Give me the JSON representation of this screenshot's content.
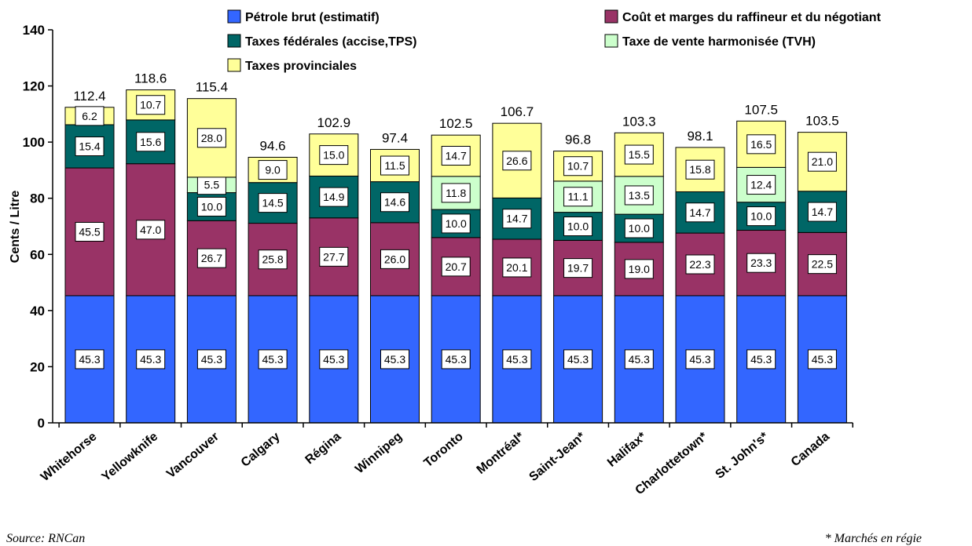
{
  "chart_data": {
    "type": "bar",
    "stacked": true,
    "title": "",
    "xlabel": "",
    "ylabel": "Cents / Litre",
    "ylim": [
      0,
      140
    ],
    "yticks": [
      0,
      20,
      40,
      60,
      80,
      100,
      120,
      140
    ],
    "grid": false,
    "legend_position": "top",
    "categories": [
      "Whitehorse",
      "Yellowknife",
      "Vancouver",
      "Calgary",
      "Régina",
      "Winnipeg",
      "Toronto",
      "Montréal*",
      "Saint-Jean*",
      "Halifax*",
      "Charlottetown*",
      "St. John's*",
      "Canada"
    ],
    "series": [
      {
        "name": "Pétrole brut (estimatif)",
        "color": "#3366ff",
        "values": [
          45.3,
          45.3,
          45.3,
          45.3,
          45.3,
          45.3,
          45.3,
          45.3,
          45.3,
          45.3,
          45.3,
          45.3,
          45.3
        ]
      },
      {
        "name": "Coût et marges du raffineur et du négotiant",
        "color": "#993366",
        "values": [
          45.5,
          47.0,
          26.7,
          25.8,
          27.7,
          26.0,
          20.7,
          20.1,
          19.7,
          19.0,
          22.3,
          23.3,
          22.5
        ]
      },
      {
        "name": "Taxes fédérales (accise,TPS)",
        "color": "#006666",
        "values": [
          15.4,
          15.6,
          10.0,
          14.5,
          14.9,
          14.6,
          10.0,
          14.7,
          10.0,
          10.0,
          14.7,
          10.0,
          14.7
        ]
      },
      {
        "name": "Taxe de vente harmonisée (TVH)",
        "color": "#ccffcc",
        "values": [
          null,
          null,
          5.5,
          null,
          null,
          null,
          11.8,
          null,
          11.1,
          13.5,
          null,
          12.4,
          null
        ]
      },
      {
        "name": "Taxes provinciales",
        "color": "#ffff99",
        "values": [
          6.2,
          10.7,
          28.0,
          9.0,
          15.0,
          11.5,
          14.7,
          26.6,
          10.7,
          15.5,
          15.8,
          16.5,
          21.0
        ]
      }
    ],
    "totals": [
      "112.4",
      "118.6",
      "115.4",
      "94.6",
      "102.9",
      "97.4",
      "102.5",
      "106.7",
      "96.8",
      "103.3",
      "98.1",
      "107.5",
      "103.5"
    ]
  },
  "footnotes": {
    "source": "Source: RNCan",
    "note": "* Marchés en régie"
  }
}
